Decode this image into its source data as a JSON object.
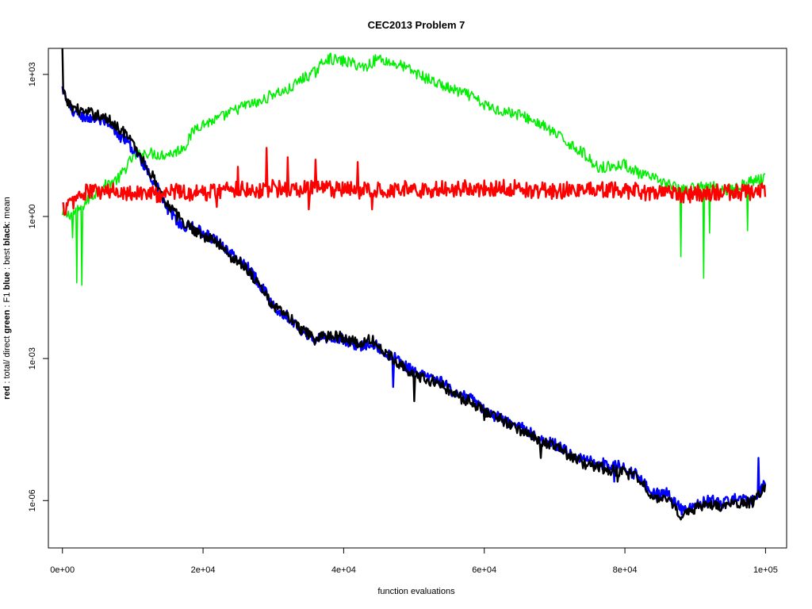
{
  "chart_data": {
    "type": "line",
    "title": "CEC2013 Problem  7",
    "xlabel": "function evaluations",
    "ylabel_parts": [
      {
        "text": "red",
        "bold": true
      },
      {
        "text": " : total/ direct ",
        "bold": false
      },
      {
        "text": "green",
        "bold": true
      },
      {
        "text": " : F1 ",
        "bold": false
      },
      {
        "text": "blue",
        "bold": true
      },
      {
        "text": " : best ",
        "bold": false
      },
      {
        "text": "black",
        "bold": true
      },
      {
        "text": ": mean",
        "bold": false
      }
    ],
    "x_scale": "linear",
    "y_scale": "log10",
    "xlim": [
      -2000,
      103000
    ],
    "ylim_log10": [
      -7.0,
      3.55
    ],
    "x_ticks": [
      {
        "value": 0,
        "label": "0e+00"
      },
      {
        "value": 20000,
        "label": "2e+04"
      },
      {
        "value": 40000,
        "label": "4e+04"
      },
      {
        "value": 60000,
        "label": "6e+04"
      },
      {
        "value": 80000,
        "label": "8e+04"
      },
      {
        "value": 100000,
        "label": "1e+05"
      }
    ],
    "y_ticks": [
      {
        "value": 1000,
        "label": "1e+03"
      },
      {
        "value": 1,
        "label": "1e+00"
      },
      {
        "value": 0.001,
        "label": "1e-03"
      },
      {
        "value": 1e-06,
        "label": "1e-06"
      }
    ],
    "grid": false,
    "legend": "none",
    "series": [
      {
        "color": "#00ee00",
        "width": 1.6,
        "noise": 0.12,
        "spikes": [
          {
            "x": 1500,
            "log10": -0.45
          },
          {
            "x": 2000,
            "log10": -1.4
          },
          {
            "x": 2800,
            "log10": -1.45
          },
          {
            "x": 88000,
            "log10": -0.85
          },
          {
            "x": 91200,
            "log10": -1.3
          },
          {
            "x": 92000,
            "log10": -0.35
          },
          {
            "x": 97500,
            "log10": -0.3
          }
        ],
        "points": [
          [
            0,
            0.0
          ],
          [
            1000,
            0.05
          ],
          [
            2000,
            0.1
          ],
          [
            4000,
            0.4
          ],
          [
            6000,
            0.65
          ],
          [
            8000,
            0.8
          ],
          [
            10000,
            1.25
          ],
          [
            12000,
            1.35
          ],
          [
            14000,
            1.3
          ],
          [
            16000,
            1.35
          ],
          [
            17500,
            1.5
          ],
          [
            19000,
            1.9
          ],
          [
            22000,
            2.05
          ],
          [
            24000,
            2.2
          ],
          [
            26000,
            2.35
          ],
          [
            28000,
            2.4
          ],
          [
            30000,
            2.6
          ],
          [
            32000,
            2.65
          ],
          [
            34000,
            2.9
          ],
          [
            36000,
            3.05
          ],
          [
            37500,
            3.35
          ],
          [
            39000,
            3.3
          ],
          [
            41000,
            3.25
          ],
          [
            43000,
            3.15
          ],
          [
            45000,
            3.35
          ],
          [
            46500,
            3.25
          ],
          [
            48000,
            3.2
          ],
          [
            50000,
            3.05
          ],
          [
            52000,
            2.9
          ],
          [
            55000,
            2.7
          ],
          [
            58000,
            2.55
          ],
          [
            60000,
            2.35
          ],
          [
            62000,
            2.25
          ],
          [
            65000,
            2.15
          ],
          [
            68000,
            1.95
          ],
          [
            70000,
            1.75
          ],
          [
            72000,
            1.55
          ],
          [
            74000,
            1.35
          ],
          [
            76000,
            1.05
          ],
          [
            78000,
            1.05
          ],
          [
            80000,
            1.1
          ],
          [
            82000,
            0.9
          ],
          [
            84000,
            0.8
          ],
          [
            86000,
            0.7
          ],
          [
            88000,
            0.55
          ],
          [
            90000,
            0.6
          ],
          [
            92000,
            0.65
          ],
          [
            95000,
            0.55
          ],
          [
            98000,
            0.75
          ],
          [
            100000,
            0.8
          ]
        ]
      },
      {
        "color": "#0000ff",
        "width": 2.4,
        "noise": 0.12,
        "spikes": [
          {
            "x": 47000,
            "log10": -3.6
          },
          {
            "x": 78500,
            "log10": -5.6
          },
          {
            "x": 99000,
            "log10": -5.1
          }
        ],
        "points": [
          [
            0,
            2.7
          ],
          [
            1000,
            2.25
          ],
          [
            3000,
            2.1
          ],
          [
            5000,
            2.05
          ],
          [
            7000,
            1.85
          ],
          [
            9000,
            1.6
          ],
          [
            11000,
            1.25
          ],
          [
            13000,
            0.75
          ],
          [
            15000,
            0.15
          ],
          [
            17000,
            -0.2
          ],
          [
            19000,
            -0.25
          ],
          [
            20000,
            -0.35
          ],
          [
            22000,
            -0.5
          ],
          [
            24000,
            -0.8
          ],
          [
            26000,
            -1.0
          ],
          [
            28000,
            -1.4
          ],
          [
            30000,
            -1.9
          ],
          [
            32000,
            -2.1
          ],
          [
            34000,
            -2.4
          ],
          [
            36000,
            -2.6
          ],
          [
            38000,
            -2.55
          ],
          [
            40000,
            -2.6
          ],
          [
            42000,
            -2.75
          ],
          [
            44000,
            -2.65
          ],
          [
            46000,
            -2.9
          ],
          [
            48000,
            -3.05
          ],
          [
            50000,
            -3.3
          ],
          [
            52000,
            -3.4
          ],
          [
            54000,
            -3.5
          ],
          [
            56000,
            -3.75
          ],
          [
            58000,
            -3.85
          ],
          [
            60000,
            -4.1
          ],
          [
            62000,
            -4.25
          ],
          [
            64000,
            -4.4
          ],
          [
            66000,
            -4.5
          ],
          [
            68000,
            -4.75
          ],
          [
            70000,
            -4.8
          ],
          [
            72000,
            -5.0
          ],
          [
            74000,
            -5.1
          ],
          [
            76000,
            -5.2
          ],
          [
            78000,
            -5.25
          ],
          [
            80000,
            -5.3
          ],
          [
            82000,
            -5.5
          ],
          [
            84000,
            -5.85
          ],
          [
            86000,
            -5.85
          ],
          [
            88000,
            -6.2
          ],
          [
            90000,
            -6.1
          ],
          [
            92000,
            -6.0
          ],
          [
            94000,
            -6.05
          ],
          [
            96000,
            -5.95
          ],
          [
            98000,
            -6.0
          ],
          [
            100000,
            -5.6
          ]
        ]
      },
      {
        "color": "#000000",
        "width": 2.4,
        "noise": 0.12,
        "spikes": [
          {
            "x": 50000,
            "log10": -3.9
          },
          {
            "x": 60000,
            "log10": -4.3
          },
          {
            "x": 68000,
            "log10": -5.1
          },
          {
            "x": 79000,
            "log10": -5.6
          },
          {
            "x": 88000,
            "log10": -6.4
          }
        ],
        "points": [
          [
            0,
            3.55
          ],
          [
            100,
            2.6
          ],
          [
            1000,
            2.35
          ],
          [
            3000,
            2.2
          ],
          [
            5000,
            2.15
          ],
          [
            7000,
            2.0
          ],
          [
            9000,
            1.75
          ],
          [
            11000,
            1.3
          ],
          [
            13000,
            0.8
          ],
          [
            15000,
            0.25
          ],
          [
            17000,
            -0.1
          ],
          [
            19000,
            -0.3
          ],
          [
            20000,
            -0.4
          ],
          [
            22000,
            -0.55
          ],
          [
            24000,
            -0.85
          ],
          [
            26000,
            -1.05
          ],
          [
            28000,
            -1.45
          ],
          [
            30000,
            -1.9
          ],
          [
            32000,
            -2.1
          ],
          [
            34000,
            -2.4
          ],
          [
            36000,
            -2.6
          ],
          [
            38000,
            -2.5
          ],
          [
            40000,
            -2.55
          ],
          [
            42000,
            -2.7
          ],
          [
            44000,
            -2.6
          ],
          [
            46000,
            -2.9
          ],
          [
            48000,
            -3.1
          ],
          [
            50000,
            -3.35
          ],
          [
            52000,
            -3.45
          ],
          [
            54000,
            -3.55
          ],
          [
            56000,
            -3.8
          ],
          [
            58000,
            -3.9
          ],
          [
            60000,
            -4.1
          ],
          [
            62000,
            -4.25
          ],
          [
            64000,
            -4.45
          ],
          [
            66000,
            -4.55
          ],
          [
            68000,
            -4.75
          ],
          [
            70000,
            -4.85
          ],
          [
            72000,
            -5.05
          ],
          [
            74000,
            -5.2
          ],
          [
            76000,
            -5.3
          ],
          [
            78000,
            -5.35
          ],
          [
            80000,
            -5.4
          ],
          [
            82000,
            -5.55
          ],
          [
            84000,
            -5.9
          ],
          [
            86000,
            -6.0
          ],
          [
            88000,
            -6.3
          ],
          [
            90000,
            -6.15
          ],
          [
            92000,
            -6.1
          ],
          [
            94000,
            -6.15
          ],
          [
            96000,
            -6.05
          ],
          [
            98000,
            -6.05
          ],
          [
            100000,
            -5.7
          ]
        ]
      },
      {
        "color": "#ff0000",
        "width": 2.4,
        "noise": 0.18,
        "spikes": [
          {
            "x": 25000,
            "log10": 1.05
          },
          {
            "x": 29000,
            "log10": 1.45
          },
          {
            "x": 32000,
            "log10": 1.25
          },
          {
            "x": 36000,
            "log10": 1.2
          },
          {
            "x": 42000,
            "log10": 1.15
          },
          {
            "x": 22000,
            "log10": 0.2
          },
          {
            "x": 35000,
            "log10": 0.15
          },
          {
            "x": 44000,
            "log10": 0.15
          }
        ],
        "points": [
          [
            0,
            0.15
          ],
          [
            1000,
            0.25
          ],
          [
            2000,
            0.4
          ],
          [
            4000,
            0.55
          ],
          [
            6000,
            0.5
          ],
          [
            8000,
            0.55
          ],
          [
            10000,
            0.5
          ],
          [
            12000,
            0.5
          ],
          [
            14000,
            0.45
          ],
          [
            16000,
            0.55
          ],
          [
            18000,
            0.5
          ],
          [
            20000,
            0.5
          ],
          [
            22000,
            0.55
          ],
          [
            25000,
            0.6
          ],
          [
            28000,
            0.55
          ],
          [
            30000,
            0.6
          ],
          [
            33000,
            0.55
          ],
          [
            36000,
            0.6
          ],
          [
            40000,
            0.55
          ],
          [
            44000,
            0.55
          ],
          [
            48000,
            0.6
          ],
          [
            52000,
            0.55
          ],
          [
            56000,
            0.6
          ],
          [
            60000,
            0.6
          ],
          [
            64000,
            0.6
          ],
          [
            68000,
            0.55
          ],
          [
            72000,
            0.55
          ],
          [
            76000,
            0.55
          ],
          [
            80000,
            0.55
          ],
          [
            84000,
            0.5
          ],
          [
            88000,
            0.45
          ],
          [
            92000,
            0.5
          ],
          [
            96000,
            0.5
          ],
          [
            100000,
            0.55
          ]
        ]
      }
    ]
  }
}
